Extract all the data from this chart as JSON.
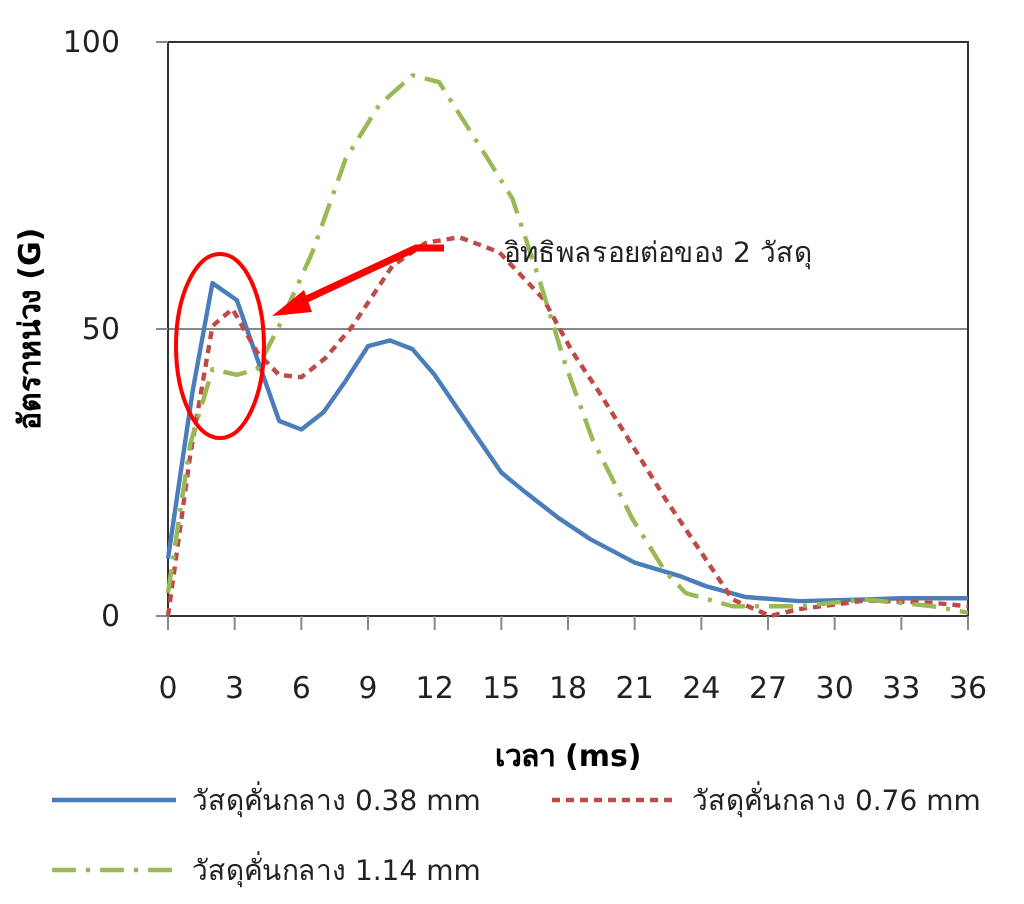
{
  "chart_data": {
    "type": "line",
    "xlabel": "เวลา (ms)",
    "ylabel": "อัตราหน่วง (G)",
    "xlim": [
      0,
      36
    ],
    "ylim": [
      0,
      100
    ],
    "xticks": [
      0,
      3,
      6,
      9,
      12,
      15,
      18,
      21,
      24,
      27,
      30,
      33,
      36
    ],
    "yticks": [
      0,
      50,
      100
    ],
    "grid": "y",
    "legend": "bottom",
    "marker": "none",
    "annotations": [
      "อิทธิพลรอยต่อของ 2 วัสดุ"
    ],
    "series": [
      {
        "name": "วัสดุคั่นกลาง 0.38  mm",
        "color": "#4a7ebb",
        "line_style": "solid",
        "x": [
          0,
          1.1,
          2,
          3.1,
          4,
          5,
          6,
          7,
          8,
          9,
          10,
          11,
          12,
          13.4,
          15,
          16.1,
          17.6,
          19,
          21,
          23,
          24.2,
          26,
          28.4,
          31.4,
          33,
          36
        ],
        "values": [
          10,
          39,
          58,
          55,
          45,
          34,
          32.5,
          35.5,
          41,
          47,
          48,
          46.5,
          42,
          34,
          25,
          21.5,
          17,
          13.4,
          9.3,
          7,
          5.2,
          3.3,
          2.6,
          2.9,
          3.1,
          3.1
        ]
      },
      {
        "name": "วัสดุคั่นกลาง 0.76  mm",
        "color": "#be4b48",
        "line_style": "dashed",
        "x": [
          0,
          1,
          2,
          2.9,
          4,
          5,
          6,
          7.1,
          8.3,
          10.1,
          11.6,
          13.1,
          14.9,
          16.9,
          18.2,
          19.4,
          20.9,
          22.4,
          24.2,
          25.4,
          27.1,
          28.4,
          31.4,
          34.4,
          36
        ],
        "values": [
          0,
          28,
          50.5,
          53.5,
          46,
          42,
          41.6,
          45,
          50.5,
          61,
          65,
          66,
          63.4,
          55.2,
          46,
          39,
          29.7,
          20.3,
          9.9,
          2.9,
          0,
          1.2,
          2.7,
          2.3,
          1.7
        ]
      },
      {
        "name": "วัสดุคั่นกลาง 1.14  mm",
        "color": "#98b954",
        "line_style": "dashdot",
        "x": [
          0,
          1,
          2,
          3.1,
          4,
          5,
          6.5,
          8,
          9.5,
          11,
          12.2,
          14.3,
          15.5,
          16.7,
          17.9,
          19.1,
          20.9,
          22.4,
          23.3,
          25.4,
          28.4,
          31.4,
          34.4,
          36
        ],
        "values": [
          4,
          30,
          43,
          42,
          43,
          50.5,
          63.4,
          79.7,
          89,
          94.2,
          93,
          80.2,
          72.7,
          58.7,
          43.6,
          30.8,
          16.9,
          7.6,
          4,
          1.7,
          1.7,
          2.9,
          1.7,
          0.6
        ]
      }
    ]
  }
}
